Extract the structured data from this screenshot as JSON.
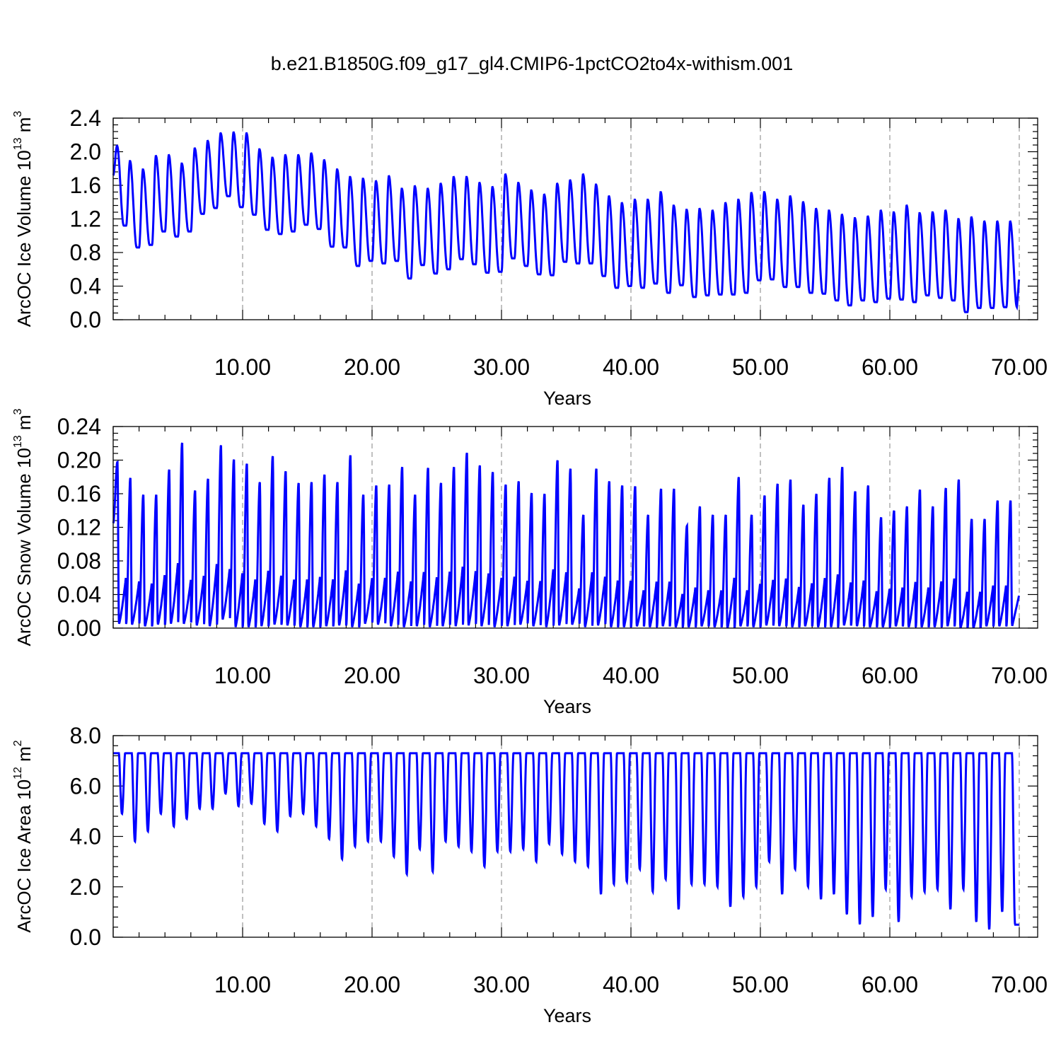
{
  "page_title": "b.e21.B1850G.f09_g17_gl4.CMIP6-1pctCO2to4x-withism.001",
  "chart_data": [
    {
      "type": "line",
      "title": "b.e21.B1850G.f09_g17_gl4.CMIP6-1pctCO2to4x-withism.001",
      "ylabel_text": "ArcOC Ice Volume 10",
      "ylabel_exp": "13",
      "ylabel_unit": " m",
      "ylabel_unit_exp": "3",
      "xlabel": "Years",
      "xlim": [
        0.0,
        70.0
      ],
      "ylim": [
        0.0,
        2.4
      ],
      "xticks": [
        10,
        20,
        30,
        40,
        50,
        60,
        70
      ],
      "xtick_labels": [
        "10.00",
        "20.00",
        "30.00",
        "40.00",
        "50.00",
        "60.00",
        "70.00"
      ],
      "yticks": [
        0.0,
        0.4,
        0.8,
        1.2,
        1.6,
        2.0,
        2.4
      ],
      "ytick_labels": [
        "0.0",
        "0.4",
        "0.8",
        "1.2",
        "1.6",
        "2.0",
        "2.4"
      ],
      "grid": "vertical-dashed",
      "color": "#0000ff",
      "series": [
        {
          "start": 1.72,
          "peak": [
            2.07,
            1.89,
            1.79,
            1.95,
            1.96,
            1.86,
            2.04,
            2.13,
            2.22,
            2.23,
            2.22,
            2.03,
            1.93,
            1.96,
            1.96,
            1.98,
            1.9,
            1.79,
            1.7,
            1.68,
            1.65,
            1.71,
            1.56,
            1.59,
            1.56,
            1.62,
            1.7,
            1.7,
            1.63,
            1.58,
            1.73,
            1.63,
            1.54,
            1.49,
            1.62,
            1.66,
            1.73,
            1.61,
            1.47,
            1.39,
            1.43,
            1.43,
            1.52,
            1.36,
            1.31,
            1.32,
            1.3,
            1.39,
            1.43,
            1.51,
            1.52,
            1.43,
            1.47,
            1.4,
            1.32,
            1.3,
            1.25,
            1.21,
            1.23,
            1.3,
            1.28,
            1.36,
            1.27,
            1.28,
            1.3,
            1.2,
            1.22,
            1.17
          ],
          "trough": [
            1.12,
            0.86,
            0.89,
            1.05,
            0.99,
            1.05,
            1.26,
            1.33,
            1.47,
            1.34,
            1.25,
            1.07,
            1.02,
            1.05,
            1.13,
            1.08,
            0.87,
            0.86,
            0.64,
            0.7,
            0.67,
            0.7,
            0.49,
            0.65,
            0.55,
            0.6,
            0.72,
            0.66,
            0.56,
            0.57,
            0.73,
            0.64,
            0.54,
            0.53,
            0.69,
            0.67,
            0.67,
            0.52,
            0.38,
            0.4,
            0.38,
            0.43,
            0.32,
            0.41,
            0.27,
            0.29,
            0.3,
            0.3,
            0.32,
            0.47,
            0.48,
            0.39,
            0.39,
            0.32,
            0.31,
            0.23,
            0.17,
            0.23,
            0.21,
            0.25,
            0.24,
            0.21,
            0.29,
            0.26,
            0.23,
            0.09,
            0.14,
            0.14,
            0.15
          ],
          "end": 0.52
        }
      ]
    },
    {
      "type": "line",
      "ylabel_text": "ArcOC Snow Volume 10",
      "ylabel_exp": "13",
      "ylabel_unit": " m",
      "ylabel_unit_exp": "3",
      "xlabel": "Years",
      "xlim": [
        0.0,
        70.0
      ],
      "ylim": [
        0.0,
        0.24
      ],
      "xticks": [
        10,
        20,
        30,
        40,
        50,
        60,
        70
      ],
      "xtick_labels": [
        "10.00",
        "20.00",
        "30.00",
        "40.00",
        "50.00",
        "60.00",
        "70.00"
      ],
      "yticks": [
        0.0,
        0.04,
        0.08,
        0.12,
        0.16,
        0.2,
        0.24
      ],
      "ytick_labels": [
        "0.00",
        "0.04",
        "0.08",
        "0.12",
        "0.16",
        "0.20",
        "0.24"
      ],
      "grid": "vertical-dashed",
      "color": "#0000ff",
      "series": [
        {
          "start": 0.125,
          "peak": [
            0.198,
            0.179,
            0.159,
            0.159,
            0.189,
            0.221,
            0.164,
            0.178,
            0.218,
            0.201,
            0.196,
            0.174,
            0.205,
            0.187,
            0.173,
            0.174,
            0.183,
            0.174,
            0.206,
            0.159,
            0.17,
            0.171,
            0.192,
            0.159,
            0.191,
            0.173,
            0.192,
            0.209,
            0.194,
            0.186,
            0.171,
            0.175,
            0.161,
            0.16,
            0.2,
            0.19,
            0.135,
            0.19,
            0.175,
            0.17,
            0.169,
            0.135,
            0.166,
            0.166,
            0.122,
            0.145,
            0.135,
            0.135,
            0.18,
            0.135,
            0.158,
            0.172,
            0.177,
            0.147,
            0.16,
            0.179,
            0.192,
            0.163,
            0.17,
            0.132,
            0.14,
            0.145,
            0.165,
            0.145,
            0.167,
            0.177,
            0.13,
            0.13,
            0.152
          ],
          "trough": [
            0.005,
            0.004,
            0.002,
            0.004,
            0.005,
            0.005,
            0.003,
            0.002,
            0.01,
            0.001,
            0.001,
            0.002,
            0.004,
            0.003,
            0.001,
            0.001,
            0.002,
            0.003,
            0.001,
            0.005,
            0.004,
            0.002,
            0.001,
            0.002,
            0.001,
            0.002,
            0.002,
            0.003,
            0.002,
            0.001,
            0.002,
            0.004,
            0.002,
            0.001,
            0.003,
            0.004,
            0.001,
            0.003,
            0.001,
            0.001,
            0.002,
            0.001,
            0.002,
            0.001,
            0.001,
            0.002,
            0.001,
            0.0,
            0.002,
            0.001,
            0.003,
            0.002,
            0.001,
            0.002,
            0.001,
            0.001,
            0.003,
            0.002,
            0.001,
            0.001,
            0.002,
            0.001,
            0.001,
            0.001,
            0.002,
            0.0,
            0.0,
            0.002,
            0.002
          ],
          "end": 0.04
        }
      ]
    },
    {
      "type": "line",
      "ylabel_text": "ArcOC Ice Area 10",
      "ylabel_exp": "12",
      "ylabel_unit": " m",
      "ylabel_unit_exp": "2",
      "xlabel": "Years",
      "xlim": [
        0.0,
        70.0
      ],
      "ylim": [
        0.0,
        8.0
      ],
      "xticks": [
        10,
        20,
        30,
        40,
        50,
        60,
        70
      ],
      "xtick_labels": [
        "10.00",
        "20.00",
        "30.00",
        "40.00",
        "50.00",
        "60.00",
        "70.00"
      ],
      "yticks": [
        0.0,
        2.0,
        4.0,
        6.0,
        8.0
      ],
      "ytick_labels": [
        "0.0",
        "2.0",
        "4.0",
        "6.0",
        "8.0"
      ],
      "grid": "vertical-dashed",
      "color": "#0000ff",
      "series": [
        {
          "start": 7.3,
          "peak_const": 7.3,
          "trough": [
            4.9,
            3.8,
            4.2,
            4.9,
            4.4,
            4.7,
            5.1,
            5.1,
            5.7,
            5.2,
            5.3,
            4.5,
            4.2,
            4.8,
            4.9,
            4.4,
            3.9,
            3.1,
            3.6,
            3.8,
            3.8,
            3.2,
            2.5,
            3.5,
            2.6,
            3.8,
            3.6,
            3.4,
            2.8,
            3.4,
            3.4,
            3.5,
            3.0,
            3.7,
            3.3,
            3.0,
            2.8,
            1.7,
            2.1,
            2.2,
            2.7,
            1.8,
            2.3,
            1.1,
            2.1,
            2.1,
            2.0,
            1.2,
            1.6,
            2.0,
            3.0,
            1.7,
            2.7,
            2.0,
            1.5,
            1.7,
            0.9,
            0.5,
            0.8,
            1.9,
            0.6,
            1.6,
            1.8,
            1.9,
            1.1,
            1.9,
            0.6,
            0.3,
            1.0,
            0.5
          ],
          "end": 0.7
        }
      ]
    }
  ]
}
